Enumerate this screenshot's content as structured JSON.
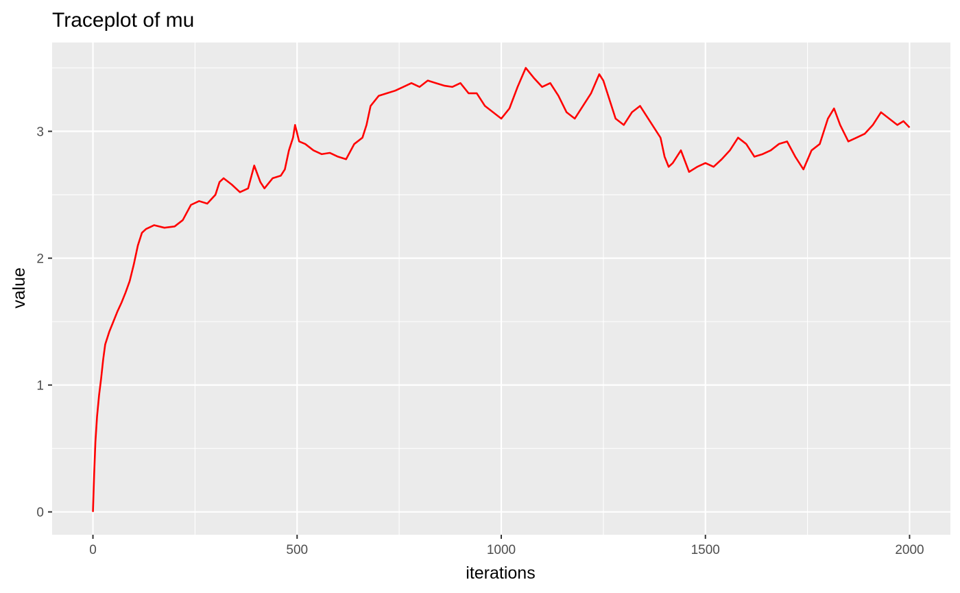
{
  "chart_data": {
    "type": "line",
    "title": "Traceplot of mu",
    "xlabel": "iterations",
    "ylabel": "value",
    "xlim": [
      -100,
      2100
    ],
    "ylim": [
      -0.18,
      3.7
    ],
    "x_ticks": [
      0,
      500,
      1000,
      1500,
      2000
    ],
    "y_ticks": [
      0,
      1,
      2,
      3
    ],
    "x_minor": [
      250,
      750,
      1250,
      1750
    ],
    "y_minor": [
      0.5,
      1.5,
      2.5,
      3.5
    ],
    "panel_background": "#EBEBEB",
    "grid": true,
    "series": [
      {
        "color": "#FF0000",
        "points": [
          [
            0,
            0.0
          ],
          [
            3,
            0.3
          ],
          [
            6,
            0.55
          ],
          [
            10,
            0.75
          ],
          [
            15,
            0.92
          ],
          [
            20,
            1.05
          ],
          [
            25,
            1.2
          ],
          [
            30,
            1.32
          ],
          [
            40,
            1.42
          ],
          [
            50,
            1.5
          ],
          [
            60,
            1.58
          ],
          [
            70,
            1.65
          ],
          [
            80,
            1.73
          ],
          [
            90,
            1.82
          ],
          [
            100,
            1.95
          ],
          [
            110,
            2.1
          ],
          [
            120,
            2.2
          ],
          [
            130,
            2.23
          ],
          [
            150,
            2.26
          ],
          [
            175,
            2.24
          ],
          [
            200,
            2.25
          ],
          [
            220,
            2.3
          ],
          [
            240,
            2.42
          ],
          [
            260,
            2.45
          ],
          [
            280,
            2.43
          ],
          [
            300,
            2.5
          ],
          [
            310,
            2.6
          ],
          [
            320,
            2.63
          ],
          [
            340,
            2.58
          ],
          [
            360,
            2.52
          ],
          [
            380,
            2.55
          ],
          [
            395,
            2.73
          ],
          [
            410,
            2.6
          ],
          [
            420,
            2.55
          ],
          [
            440,
            2.63
          ],
          [
            460,
            2.65
          ],
          [
            470,
            2.7
          ],
          [
            480,
            2.85
          ],
          [
            490,
            2.95
          ],
          [
            495,
            3.05
          ],
          [
            505,
            2.92
          ],
          [
            520,
            2.9
          ],
          [
            540,
            2.85
          ],
          [
            560,
            2.82
          ],
          [
            580,
            2.83
          ],
          [
            600,
            2.8
          ],
          [
            620,
            2.78
          ],
          [
            640,
            2.9
          ],
          [
            660,
            2.95
          ],
          [
            670,
            3.05
          ],
          [
            680,
            3.2
          ],
          [
            700,
            3.28
          ],
          [
            720,
            3.3
          ],
          [
            740,
            3.32
          ],
          [
            760,
            3.35
          ],
          [
            780,
            3.38
          ],
          [
            800,
            3.35
          ],
          [
            820,
            3.4
          ],
          [
            840,
            3.38
          ],
          [
            860,
            3.36
          ],
          [
            880,
            3.35
          ],
          [
            900,
            3.38
          ],
          [
            920,
            3.3
          ],
          [
            940,
            3.3
          ],
          [
            960,
            3.2
          ],
          [
            980,
            3.15
          ],
          [
            1000,
            3.1
          ],
          [
            1020,
            3.18
          ],
          [
            1040,
            3.35
          ],
          [
            1060,
            3.5
          ],
          [
            1080,
            3.42
          ],
          [
            1100,
            3.35
          ],
          [
            1120,
            3.38
          ],
          [
            1140,
            3.28
          ],
          [
            1160,
            3.15
          ],
          [
            1180,
            3.1
          ],
          [
            1200,
            3.2
          ],
          [
            1220,
            3.3
          ],
          [
            1240,
            3.45
          ],
          [
            1250,
            3.4
          ],
          [
            1260,
            3.3
          ],
          [
            1280,
            3.1
          ],
          [
            1300,
            3.05
          ],
          [
            1320,
            3.15
          ],
          [
            1340,
            3.2
          ],
          [
            1360,
            3.1
          ],
          [
            1380,
            3.0
          ],
          [
            1390,
            2.95
          ],
          [
            1400,
            2.8
          ],
          [
            1410,
            2.72
          ],
          [
            1420,
            2.75
          ],
          [
            1440,
            2.85
          ],
          [
            1460,
            2.68
          ],
          [
            1480,
            2.72
          ],
          [
            1500,
            2.75
          ],
          [
            1520,
            2.72
          ],
          [
            1540,
            2.78
          ],
          [
            1560,
            2.85
          ],
          [
            1580,
            2.95
          ],
          [
            1600,
            2.9
          ],
          [
            1620,
            2.8
          ],
          [
            1640,
            2.82
          ],
          [
            1660,
            2.85
          ],
          [
            1680,
            2.9
          ],
          [
            1700,
            2.92
          ],
          [
            1720,
            2.8
          ],
          [
            1740,
            2.7
          ],
          [
            1760,
            2.85
          ],
          [
            1780,
            2.9
          ],
          [
            1800,
            3.1
          ],
          [
            1815,
            3.18
          ],
          [
            1830,
            3.05
          ],
          [
            1850,
            2.92
          ],
          [
            1870,
            2.95
          ],
          [
            1890,
            2.98
          ],
          [
            1910,
            3.05
          ],
          [
            1930,
            3.15
          ],
          [
            1950,
            3.1
          ],
          [
            1970,
            3.05
          ],
          [
            1985,
            3.08
          ],
          [
            2000,
            3.03
          ]
        ]
      }
    ]
  }
}
